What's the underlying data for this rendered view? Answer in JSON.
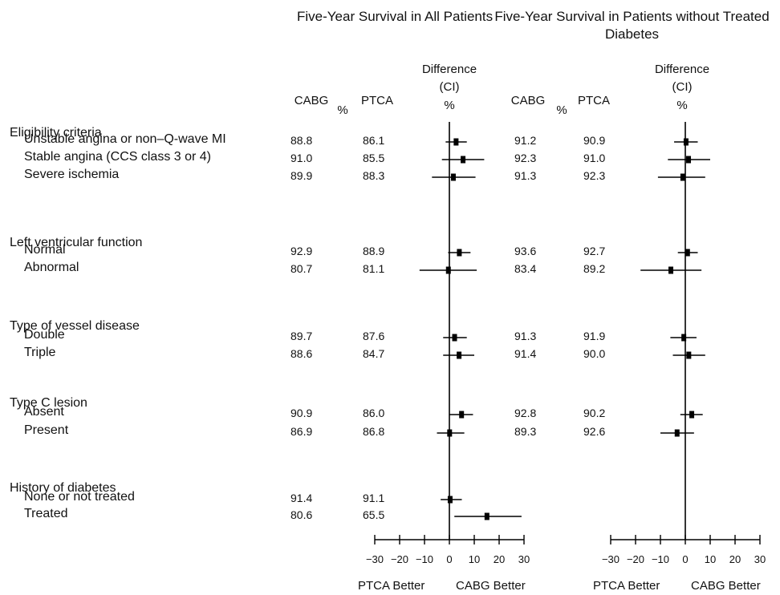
{
  "chart_data": {
    "type": "forest",
    "panels": [
      {
        "title": "Five-Year Survival in All Patients",
        "columns": {
          "cabg": "CABG",
          "ptca": "PTCA",
          "pct": "%",
          "difference": "Difference",
          "ci": "(CI)",
          "diff_pct": "%"
        },
        "xlim": [
          -30,
          30
        ],
        "x_ticks": [
          -30,
          -20,
          -10,
          0,
          10,
          20,
          30
        ],
        "x_tick_labels": [
          "−30",
          "−20",
          "−10",
          "0",
          "10",
          "20",
          "30"
        ],
        "left_label": "PTCA Better",
        "right_label": "CABG Better"
      },
      {
        "title": "Five-Year Survival in Patients without Treated Diabetes",
        "columns": {
          "cabg": "CABG",
          "ptca": "PTCA",
          "pct": "%",
          "difference": "Difference",
          "ci": "(CI)",
          "diff_pct": "%"
        },
        "xlim": [
          -30,
          30
        ],
        "x_ticks": [
          -30,
          -20,
          -10,
          0,
          10,
          20,
          30
        ],
        "x_tick_labels": [
          "−30",
          "−20",
          "−10",
          "0",
          "10",
          "20",
          "30"
        ],
        "left_label": "PTCA Better",
        "right_label": "CABG Better"
      }
    ],
    "groups": [
      {
        "label": "Eligibility criteria",
        "rows": [
          {
            "label": "Unstable angina or non–Q-wave MI",
            "all": {
              "cabg": "88.8",
              "ptca": "86.1",
              "diff": 2.7,
              "lo": -1.5,
              "hi": 7
            },
            "nodiab": {
              "cabg": "91.2",
              "ptca": "90.9",
              "diff": 0.3,
              "lo": -4.5,
              "hi": 5
            }
          },
          {
            "label": "Stable angina (CCS class 3 or 4)",
            "all": {
              "cabg": "91.0",
              "ptca": "85.5",
              "diff": 5.5,
              "lo": -3,
              "hi": 14
            },
            "nodiab": {
              "cabg": "92.3",
              "ptca": "91.0",
              "diff": 1.3,
              "lo": -7,
              "hi": 10
            }
          },
          {
            "label": "Severe ischemia",
            "all": {
              "cabg": "89.9",
              "ptca": "88.3",
              "diff": 1.6,
              "lo": -7,
              "hi": 10.5
            },
            "nodiab": {
              "cabg": "91.3",
              "ptca": "92.3",
              "diff": -1.0,
              "lo": -11,
              "hi": 8
            }
          }
        ]
      },
      {
        "label": "Left ventricular function",
        "rows": [
          {
            "label": "Normal",
            "all": {
              "cabg": "92.9",
              "ptca": "88.9",
              "diff": 4.0,
              "lo": -0.5,
              "hi": 8.5
            },
            "nodiab": {
              "cabg": "93.6",
              "ptca": "92.7",
              "diff": 0.9,
              "lo": -3,
              "hi": 5
            }
          },
          {
            "label": "Abnormal",
            "all": {
              "cabg": "80.7",
              "ptca": "81.1",
              "diff": -0.4,
              "lo": -12,
              "hi": 11
            },
            "nodiab": {
              "cabg": "83.4",
              "ptca": "89.2",
              "diff": -5.8,
              "lo": -18,
              "hi": 6.5
            }
          }
        ]
      },
      {
        "label": "Type of vessel disease",
        "rows": [
          {
            "label": "Double",
            "all": {
              "cabg": "89.7",
              "ptca": "87.6",
              "diff": 2.1,
              "lo": -2.5,
              "hi": 7
            },
            "nodiab": {
              "cabg": "91.3",
              "ptca": "91.9",
              "diff": -0.6,
              "lo": -6,
              "hi": 4.5
            }
          },
          {
            "label": "Triple",
            "all": {
              "cabg": "88.6",
              "ptca": "84.7",
              "diff": 3.9,
              "lo": -2.5,
              "hi": 10
            },
            "nodiab": {
              "cabg": "91.4",
              "ptca": "90.0",
              "diff": 1.4,
              "lo": -5,
              "hi": 8
            }
          }
        ]
      },
      {
        "label": "Type C lesion",
        "rows": [
          {
            "label": "Absent",
            "all": {
              "cabg": "90.9",
              "ptca": "86.0",
              "diff": 4.9,
              "lo": 0,
              "hi": 9.5
            },
            "nodiab": {
              "cabg": "92.8",
              "ptca": "90.2",
              "diff": 2.6,
              "lo": -2,
              "hi": 7
            }
          },
          {
            "label": "Present",
            "all": {
              "cabg": "86.9",
              "ptca": "86.8",
              "diff": 0.1,
              "lo": -5,
              "hi": 6
            },
            "nodiab": {
              "cabg": "89.3",
              "ptca": "92.6",
              "diff": -3.3,
              "lo": -10,
              "hi": 3.5
            }
          }
        ]
      },
      {
        "label": "History of diabetes",
        "rows": [
          {
            "label": "None or not treated",
            "all": {
              "cabg": "91.4",
              "ptca": "91.1",
              "diff": 0.3,
              "lo": -3.5,
              "hi": 5
            },
            "nodiab": null
          },
          {
            "label": "Treated",
            "all": {
              "cabg": "80.6",
              "ptca": "65.5",
              "diff": 15.1,
              "lo": 2,
              "hi": 29
            },
            "nodiab": null
          }
        ]
      }
    ]
  }
}
